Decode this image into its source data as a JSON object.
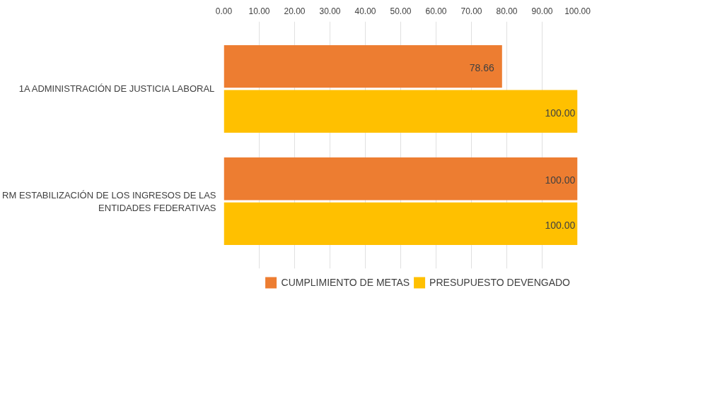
{
  "chart_data": {
    "type": "bar",
    "orientation": "horizontal",
    "categories": [
      "1A ADMINISTRACIÓN DE JUSTICIA LABORAL",
      "RM ESTABILIZACIÓN DE LOS INGRESOS DE LAS ENTIDADES FEDERATIVAS"
    ],
    "series": [
      {
        "name": "CUMPLIMIENTO DE METAS",
        "color": "#ed7d31",
        "values": [
          78.66,
          100
        ],
        "value_labels": [
          "78.66",
          "100.00"
        ]
      },
      {
        "name": "PRESUPUESTO DEVENGADO",
        "color": "#ffc000",
        "values": [
          100,
          100
        ],
        "value_labels": [
          "100.00",
          "100.00"
        ]
      }
    ],
    "xlim": [
      0,
      100
    ],
    "xticks": [
      {
        "value": 0,
        "label": "0.00"
      },
      {
        "value": 10,
        "label": "10.00"
      },
      {
        "value": 20,
        "label": "20.00"
      },
      {
        "value": 30,
        "label": "30.00"
      },
      {
        "value": 40,
        "label": "40.00"
      },
      {
        "value": 50,
        "label": "50.00"
      },
      {
        "value": 60,
        "label": "60.00"
      },
      {
        "value": 70,
        "label": "70.00"
      },
      {
        "value": 80,
        "label": "80.00"
      },
      {
        "value": 90,
        "label": "90.00"
      },
      {
        "value": 100,
        "label": "100.00"
      }
    ],
    "grid": "x",
    "legend": "bottom"
  }
}
